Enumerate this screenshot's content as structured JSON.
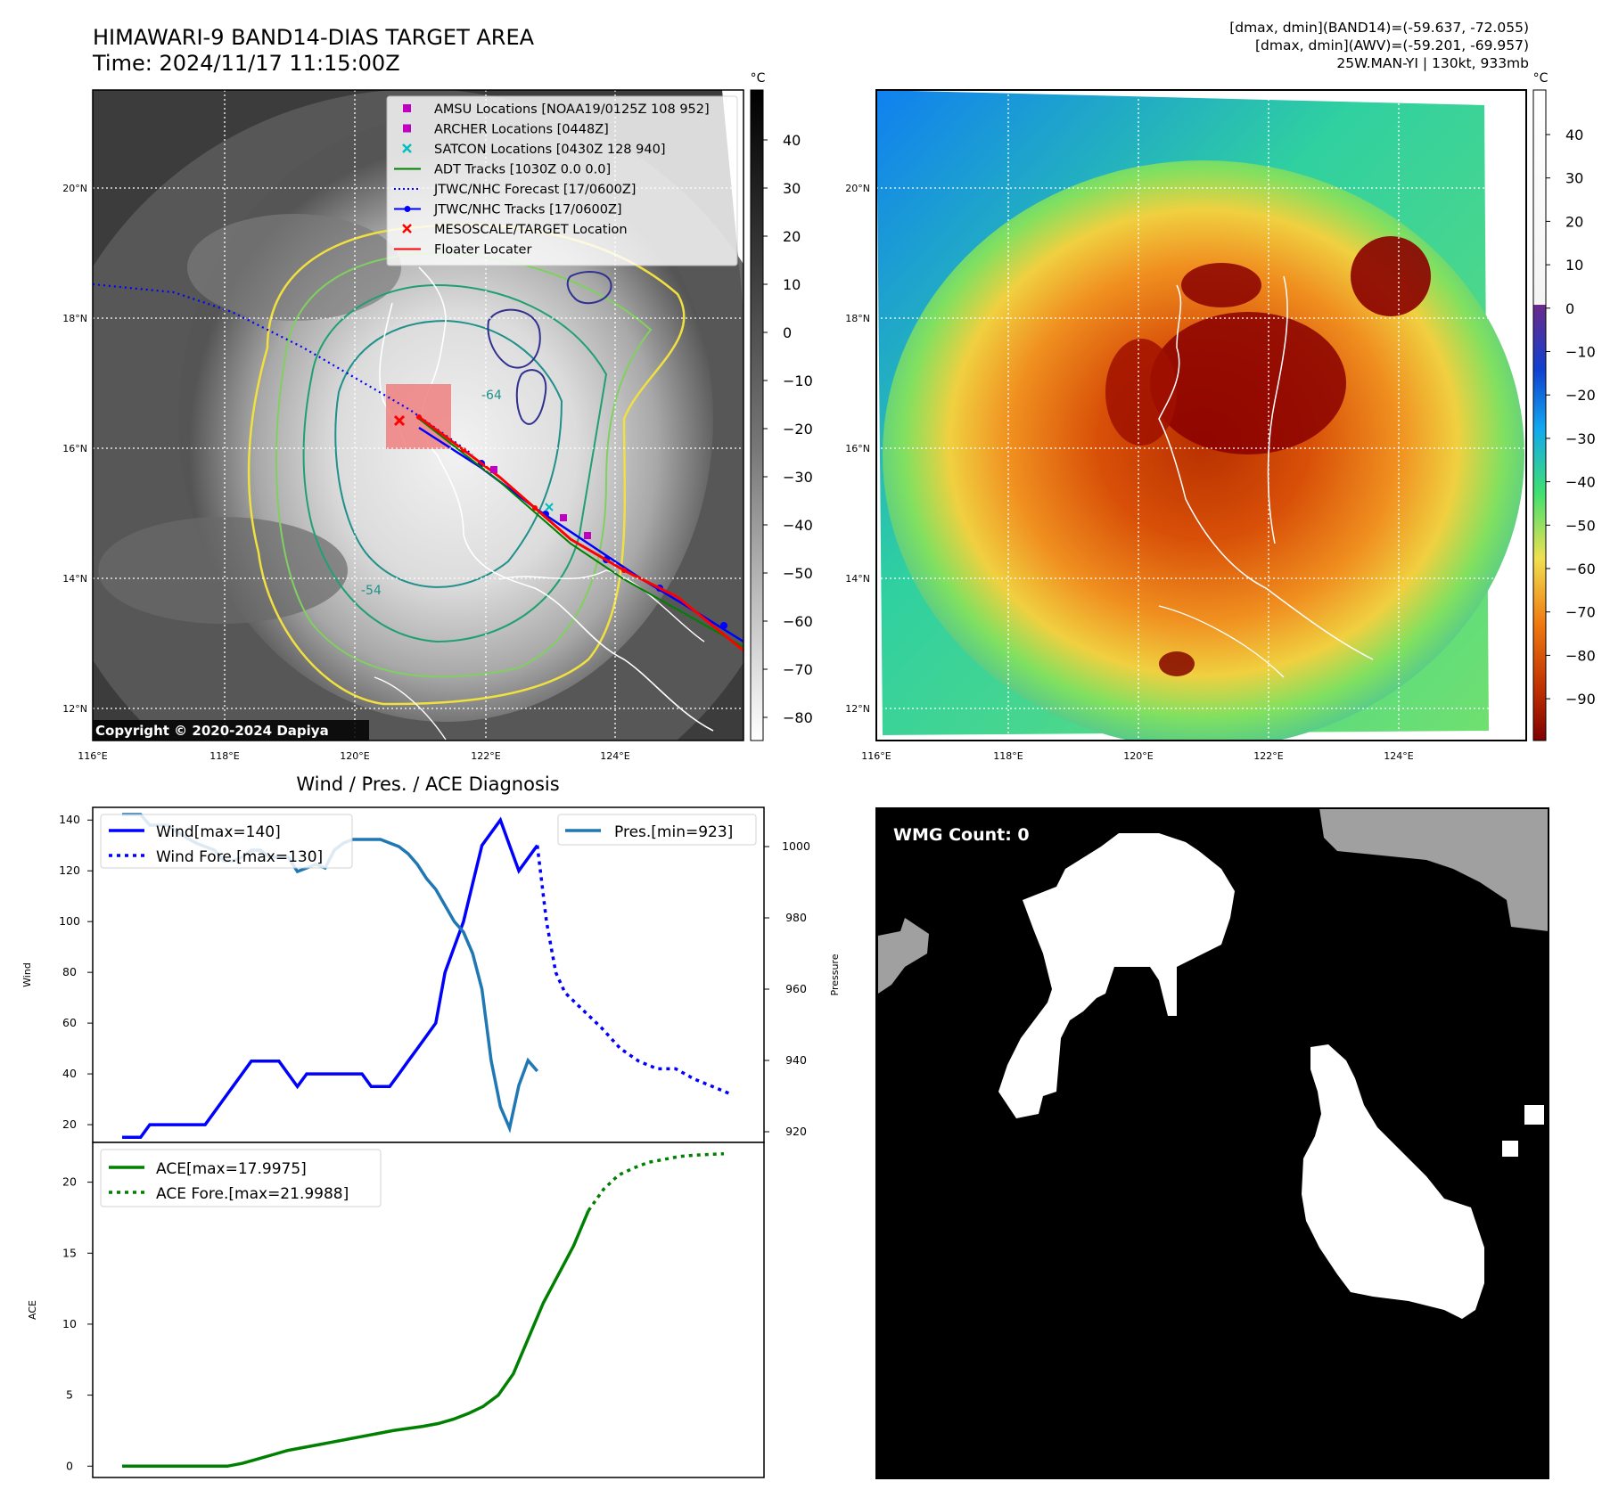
{
  "header": {
    "title_line1": "HIMAWARI-9 BAND14-DIAS TARGET AREA",
    "title_line2": "Time: 2024/11/17 11:15:00Z",
    "info_line1": "[dmax, dmin](BAND14)=(-59.637, -72.055)",
    "info_line2": "[dmax, dmin](AWV)=(-59.201, -69.957)",
    "info_line3": "25W.MAN-YI | 130kt, 933mb"
  },
  "map": {
    "lon_ticks": [
      "116°E",
      "118°E",
      "120°E",
      "122°E",
      "124°E"
    ],
    "lat_ticks": [
      "20°N",
      "18°N",
      "16°N",
      "14°N",
      "12°N"
    ],
    "copyright": "Copyright © 2020-2024 Dapiya",
    "contour_labels": [
      "-64",
      "-54"
    ],
    "legend": [
      {
        "label": "AMSU Locations [NOAA19/0125Z 108 952]",
        "color": "#c000c0",
        "marker": "square"
      },
      {
        "label": "ARCHER Locations [0448Z]",
        "color": "#c000c0",
        "marker": "square"
      },
      {
        "label": "SATCON Locations [0430Z 128 940]",
        "color": "#00bfbf",
        "marker": "x"
      },
      {
        "label": "ADT Tracks [1030Z 0.0 0.0]",
        "color": "#008000",
        "marker": "line"
      },
      {
        "label": "JTWC/NHC Forecast [17/0600Z]",
        "color": "#0000ff",
        "marker": "dotted"
      },
      {
        "label": "JTWC/NHC Tracks [17/0600Z]",
        "color": "#0000ff",
        "marker": "line-dot"
      },
      {
        "label": "MESOSCALE/TARGET Location",
        "color": "#ff0000",
        "marker": "x"
      },
      {
        "label": "Floater Locater",
        "color": "#ff0000",
        "marker": "line"
      }
    ],
    "cbar_unit": "°C",
    "cbar1_ticks": [
      "40",
      "30",
      "20",
      "10",
      "0",
      "−10",
      "−20",
      "−30",
      "−40",
      "−50",
      "−60",
      "−70",
      "−80"
    ],
    "cbar2_ticks": [
      "40",
      "30",
      "20",
      "10",
      "0",
      "−10",
      "−20",
      "−30",
      "−40",
      "−50",
      "−60",
      "−70",
      "−80",
      "−90"
    ]
  },
  "colors": {
    "wind": "#0000ff",
    "pressure": "#1f77b4",
    "ace": "#008000",
    "floater": "#ff0000"
  },
  "chart_data": [
    {
      "type": "line",
      "title": "Wind / Pres. / ACE Diagnosis",
      "ylabel": "Wind",
      "y2label": "Pressure",
      "ylim": [
        13,
        145
      ],
      "y2lim": [
        917,
        1011
      ],
      "yticks": [
        20,
        40,
        60,
        80,
        100,
        120,
        140
      ],
      "y2ticks": [
        920,
        940,
        960,
        980,
        1000
      ],
      "legend_wind": [
        "Wind[max=140]",
        "Wind Fore.[max=130]"
      ],
      "legend_pres": [
        "Pres.[min=923]"
      ],
      "x": [
        0,
        1,
        2,
        3,
        4,
        5,
        6,
        7,
        8,
        9,
        10,
        11,
        12,
        13,
        14,
        15,
        16,
        17,
        18,
        19,
        20,
        21,
        22,
        23,
        24,
        25,
        26,
        27,
        28,
        29,
        30,
        31,
        32,
        33,
        34,
        35
      ],
      "wind": [
        15,
        15,
        20,
        20,
        20,
        20,
        25,
        30,
        35,
        40,
        45,
        45,
        45,
        45,
        40,
        35,
        40,
        40,
        40,
        40,
        40,
        40,
        40,
        35,
        35,
        35,
        40,
        45,
        50,
        55,
        60,
        80,
        90,
        100,
        115,
        130,
        135,
        140,
        130,
        120,
        125,
        130
      ],
      "wind_x": [
        0,
        1,
        1.5,
        2.5,
        3.5,
        4.5,
        5,
        5.5,
        6,
        6.5,
        7,
        7.5,
        8,
        8.5,
        9,
        9.5,
        10,
        10.5,
        11,
        11.5,
        12,
        12.5,
        13,
        13.5,
        14,
        14.5,
        15,
        15.5,
        16,
        16.5,
        17,
        17.5,
        18,
        18.5,
        19,
        19.5,
        20,
        20.5,
        21,
        21.5,
        22,
        22.5
      ],
      "wind_fore_x": [
        22.5,
        23,
        23.5,
        24,
        25,
        26,
        27,
        28,
        29,
        30,
        31,
        32,
        33
      ],
      "wind_fore": [
        130,
        100,
        80,
        72,
        65,
        58,
        50,
        45,
        42,
        42,
        38,
        35,
        32
      ],
      "pres_x": [
        0,
        1,
        1.5,
        2,
        2.5,
        3,
        4,
        5,
        5.5,
        6,
        6.5,
        7,
        7.5,
        8,
        9,
        9.5,
        10,
        10.5,
        11,
        11.5,
        12,
        12.5,
        13,
        14,
        15,
        15.5,
        16,
        16.5,
        17,
        18,
        18.5,
        19,
        19.5,
        20,
        20.5,
        21,
        21.5,
        22,
        22.5
      ],
      "pressure": [
        1009,
        1009,
        1006,
        1006,
        1006,
        1004,
        1001,
        999,
        996,
        996,
        997,
        999,
        999,
        997,
        997,
        993,
        994,
        995,
        994,
        999,
        1001,
        1002,
        1002,
        1002,
        1000,
        998,
        995,
        991,
        988,
        979,
        976,
        970,
        960,
        940,
        927,
        921,
        933,
        940,
        937
      ],
      "pressure_name": "Pres.[min=923]"
    },
    {
      "type": "line",
      "ylabel": "ACE",
      "ylim": [
        -0.8,
        22.8
      ],
      "yticks": [
        0,
        5,
        10,
        15,
        20
      ],
      "legend": [
        "ACE[max=17.9975]",
        "ACE Fore.[max=21.9988]"
      ],
      "x": [
        0,
        1,
        2,
        3,
        4,
        5,
        6,
        7,
        8,
        9,
        10,
        11,
        12,
        13,
        14,
        15,
        16,
        17,
        18,
        19,
        20,
        21,
        22,
        23,
        24,
        25,
        26,
        27,
        28,
        29,
        30,
        31,
        32
      ],
      "ace": [
        0,
        0,
        0,
        0,
        0,
        0,
        0,
        0,
        0.2,
        0.5,
        0.8,
        1.1,
        1.3,
        1.5,
        1.7,
        1.9,
        2.1,
        2.3,
        2.5,
        2.65,
        2.8,
        3.0,
        3.3,
        3.7,
        4.2,
        5.0,
        6.5,
        9.0,
        11.5,
        13.5,
        15.5,
        18.0
      ],
      "ace_fore_x": [
        31,
        32,
        33,
        34,
        35,
        36,
        37,
        38,
        39,
        40
      ],
      "ace_fore": [
        18.0,
        19.5,
        20.5,
        21.0,
        21.4,
        21.6,
        21.8,
        21.9,
        21.95,
        22.0
      ]
    }
  ],
  "wmg": {
    "label": "WMG Count: 0"
  }
}
